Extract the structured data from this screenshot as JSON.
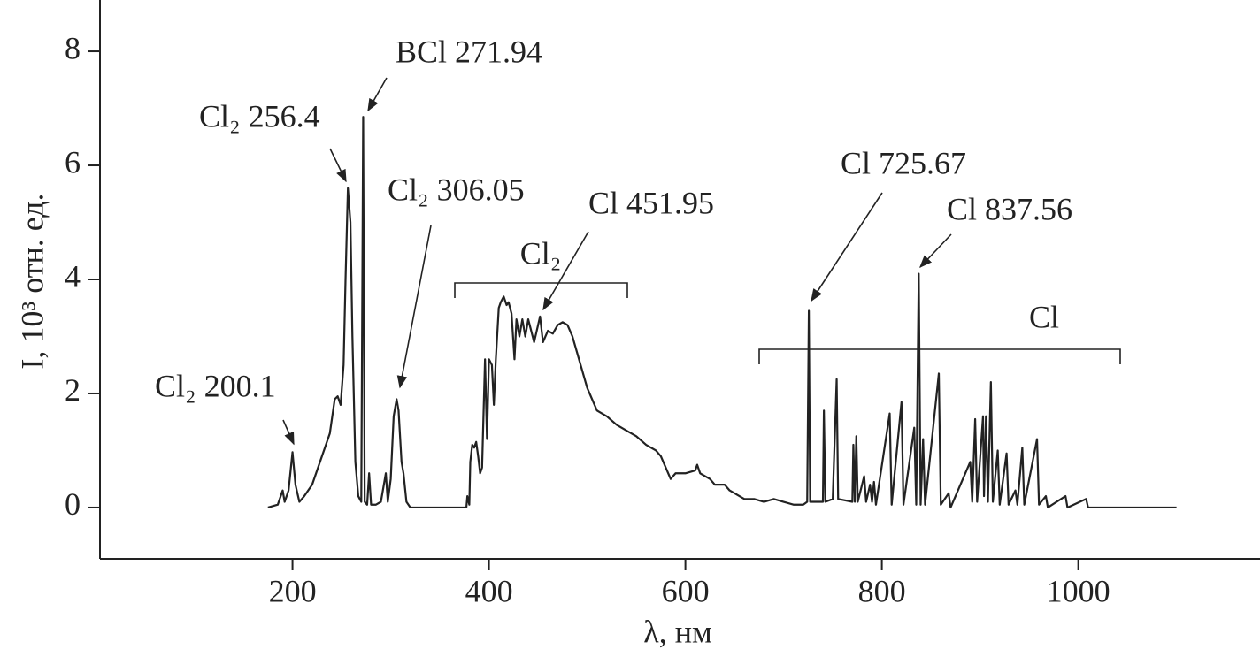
{
  "chart_data": {
    "type": "line",
    "xlabel": "λ, нм",
    "ylabel": "I, 10³ отн. ед.",
    "xlim": [
      4,
      1185
    ],
    "ylim": [
      -0.9,
      8.9
    ],
    "xticks": [
      200,
      400,
      600,
      800,
      1000
    ],
    "yticks": [
      0,
      2,
      4,
      6,
      8
    ],
    "series": [
      {
        "color": "#222222",
        "x": [
          175,
          185,
          190,
          192,
          196,
          200,
          203,
          207,
          212,
          220,
          230,
          238,
          243,
          246,
          249,
          252,
          254,
          256.4,
          259,
          261,
          264,
          267,
          270,
          271.94,
          273.5,
          276,
          278,
          280,
          285,
          290,
          295,
          297,
          300,
          303,
          306,
          308,
          311,
          313,
          316,
          320,
          377,
          378,
          380,
          381,
          383,
          385,
          387,
          389,
          391,
          393,
          396,
          398,
          400,
          403,
          405,
          407,
          410,
          412,
          415,
          418,
          420,
          423,
          426,
          428,
          431,
          434,
          437,
          440,
          443,
          446,
          450,
          452,
          455,
          460,
          465,
          470,
          475,
          480,
          485,
          490,
          495,
          500,
          505,
          510,
          520,
          530,
          540,
          550,
          560,
          570,
          575,
          580,
          585,
          590,
          600,
          610,
          612,
          615,
          625,
          630,
          640,
          645,
          650,
          660,
          670,
          680,
          690,
          700,
          710,
          720,
          724,
          725.67,
          727,
          735,
          740,
          741,
          742.5,
          750,
          754,
          755.5,
          770,
          771,
          772.5,
          774,
          775.5,
          782,
          784,
          788,
          790,
          792,
          794,
          808,
          810,
          820,
          822,
          833,
          835,
          837.56,
          839.5,
          842,
          844,
          858,
          860,
          868,
          870,
          890,
          892,
          895,
          897,
          903,
          904,
          906,
          908,
          911,
          913,
          918,
          920,
          927,
          929,
          936,
          938,
          943,
          945,
          958,
          960,
          967,
          969,
          987,
          989,
          1008,
          1010,
          1100
        ],
        "values": [
          0,
          0.05,
          0.3,
          0.1,
          0.3,
          0.97,
          0.4,
          0.1,
          0.2,
          0.4,
          0.9,
          1.3,
          1.9,
          1.95,
          1.8,
          2.5,
          4,
          5.6,
          5,
          3,
          0.8,
          0.2,
          0.1,
          6.85,
          0.1,
          0.05,
          0.6,
          0.05,
          0.05,
          0.1,
          0.6,
          0.1,
          0.5,
          1.6,
          1.9,
          1.7,
          0.8,
          0.6,
          0.1,
          0,
          0,
          0.2,
          0.05,
          0.8,
          1.1,
          1.05,
          1.15,
          0.9,
          0.6,
          0.7,
          2.6,
          1.2,
          2.6,
          2.5,
          1.8,
          2.6,
          3.5,
          3.6,
          3.7,
          3.55,
          3.6,
          3.4,
          2.6,
          3.3,
          3.0,
          3.3,
          3.0,
          3.3,
          3.1,
          2.9,
          3.2,
          3.35,
          2.9,
          3.1,
          3.05,
          3.2,
          3.25,
          3.2,
          3.0,
          2.7,
          2.4,
          2.1,
          1.9,
          1.7,
          1.6,
          1.45,
          1.35,
          1.25,
          1.1,
          1.0,
          0.9,
          0.7,
          0.5,
          0.6,
          0.6,
          0.65,
          0.75,
          0.6,
          0.5,
          0.4,
          0.4,
          0.3,
          0.25,
          0.15,
          0.15,
          0.1,
          0.15,
          0.1,
          0.05,
          0.05,
          0.1,
          3.45,
          0.1,
          0.1,
          0.1,
          1.7,
          0.1,
          0.15,
          2.25,
          0.15,
          0.1,
          1.1,
          0.1,
          1.25,
          0.1,
          0.55,
          0.1,
          0.4,
          0.1,
          0.45,
          0.05,
          1.65,
          0.05,
          1.85,
          0.05,
          1.4,
          0.05,
          4.1,
          0.05,
          1.2,
          0.05,
          2.35,
          0.05,
          0.25,
          0,
          0.8,
          0.1,
          1.55,
          0.1,
          1.6,
          0.2,
          1.6,
          0.1,
          2.2,
          0.1,
          1.0,
          0.05,
          0.95,
          0.05,
          0.3,
          0.05,
          1.05,
          0.05,
          1.2,
          0.05,
          0.2,
          0,
          0.2,
          0,
          0.15,
          0,
          0
        ]
      }
    ],
    "annotations": [
      "Cl₂ 200.1",
      "Cl₂ 256.4",
      "BCl 271.94",
      "Cl₂ 306.05",
      "Cl 451.95",
      "Cl 725.67",
      "Cl 837.56"
    ],
    "brackets": [
      "Cl₂",
      "Cl"
    ]
  }
}
